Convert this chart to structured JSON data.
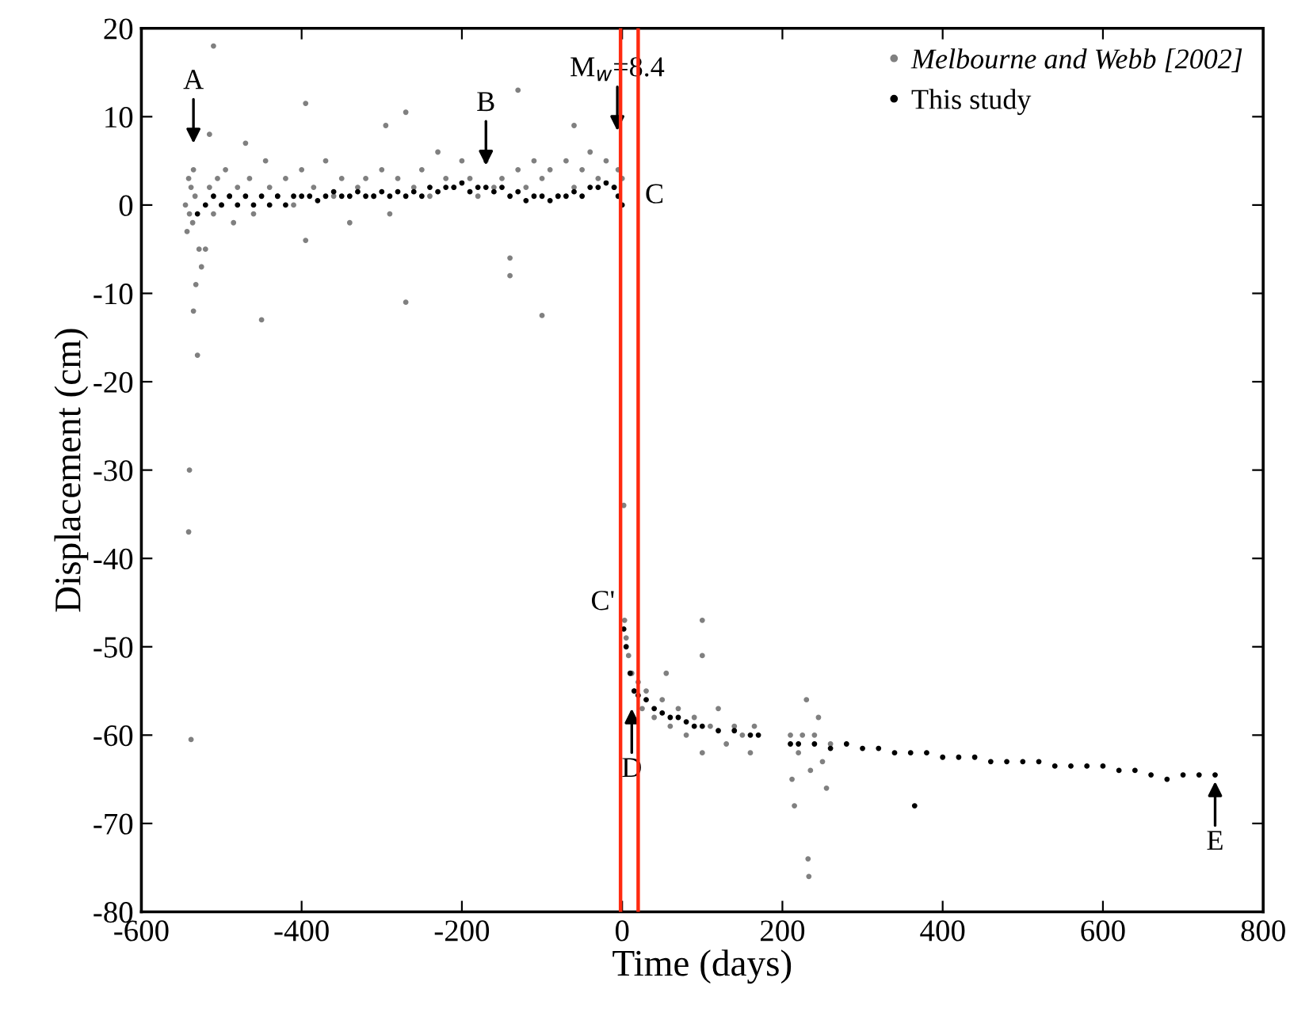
{
  "chart_data": {
    "type": "scatter",
    "xlabel": "Time (days)",
    "ylabel": "Displacement (cm)",
    "xlim": [
      -600,
      800
    ],
    "xticks": [
      -600,
      -400,
      -200,
      0,
      200,
      400,
      600,
      800
    ],
    "ylim": [
      -80,
      20
    ],
    "yticks": [
      -80,
      -70,
      -60,
      -50,
      -40,
      -30,
      -20,
      -10,
      0,
      10,
      20
    ],
    "grid": false,
    "legend": "top right",
    "marker": "circle",
    "ref_lines": [
      {
        "axis": "x",
        "value": -2,
        "color": "#ff2a10"
      },
      {
        "axis": "x",
        "value": 20,
        "color": "#ff2a10"
      }
    ],
    "annotations": [
      {
        "text": "A",
        "x": -535,
        "y": 4
      },
      {
        "text": "B",
        "x": -170,
        "y": 2
      },
      {
        "text": "M$_{w}$=8.4",
        "x": -6,
        "y": 8.4
      },
      {
        "text": "D",
        "x": 12,
        "y": -57
      },
      {
        "text": "E",
        "x": 740,
        "y": -64.5
      },
      {
        "text": "C",
        "x": 12,
        "y": 1
      },
      {
        "text": "C'",
        "x": 2,
        "y": -48
      }
    ],
    "series": [
      {
        "name": "Melbourne and Webb [2002]",
        "color": "#808080",
        "x": [
          -545,
          -543,
          -541,
          -540,
          -538,
          -536,
          -535,
          -533,
          -530,
          -541,
          -540,
          -538,
          -535,
          -532,
          -528,
          -525,
          -520,
          -510,
          -515,
          -515,
          -510,
          -505,
          -500,
          -495,
          -490,
          -485,
          -480,
          -470,
          -465,
          -460,
          -450,
          -445,
          -440,
          -430,
          -420,
          -410,
          -400,
          -395,
          -395,
          -385,
          -370,
          -360,
          -350,
          -340,
          -330,
          -320,
          -310,
          -300,
          -295,
          -290,
          -280,
          -270,
          -270,
          -260,
          -250,
          -240,
          -230,
          -220,
          -210,
          -200,
          -190,
          -180,
          -170,
          -160,
          -150,
          -140,
          -140,
          -130,
          -130,
          -120,
          -110,
          -100,
          -100,
          -90,
          -80,
          -70,
          -60,
          -60,
          -50,
          -40,
          -30,
          -20,
          -10,
          -5,
          0,
          2,
          3,
          5,
          8,
          12,
          15,
          20,
          25,
          30,
          40,
          50,
          55,
          60,
          70,
          80,
          90,
          100,
          100,
          100,
          110,
          120,
          130,
          140,
          150,
          160,
          165,
          210,
          212,
          215,
          220,
          225,
          230,
          232,
          233,
          235,
          240,
          245,
          250,
          255,
          260
        ],
        "values": [
          0,
          -3,
          3,
          -1,
          2,
          -2,
          4,
          1,
          -17,
          -37,
          -30,
          -60.5,
          -12,
          -9,
          -5,
          -7,
          -5,
          18,
          8,
          2,
          -1,
          3,
          0,
          4,
          1,
          -2,
          2,
          7,
          3,
          -1,
          -13,
          5,
          2,
          1,
          3,
          0,
          4,
          11.5,
          -4,
          2,
          5,
          1,
          3,
          -2,
          2,
          3,
          1,
          4,
          9,
          -1,
          3,
          10.5,
          -11,
          2,
          4,
          1,
          6,
          3,
          2,
          5,
          3,
          1,
          5,
          2,
          3,
          -6,
          -8,
          13,
          4,
          2,
          5,
          -12.5,
          3,
          4,
          1,
          5,
          9,
          2,
          4,
          6,
          3,
          5,
          2,
          4,
          3,
          -34,
          -47,
          -49,
          -51,
          -53,
          -55,
          -54,
          -57,
          -55,
          -58,
          -56,
          -53,
          -59,
          -57,
          -60,
          -58,
          -47,
          -51,
          -62,
          -59,
          -57,
          -61,
          -59,
          -60,
          -62,
          -59,
          -60,
          -65,
          -68,
          -62,
          -60,
          -56,
          -74,
          -76,
          -64,
          -60,
          -58,
          -63,
          -66,
          -61
        ]
      },
      {
        "name": "This study",
        "color": "#000000",
        "x": [
          -530,
          -520,
          -510,
          -500,
          -490,
          -480,
          -470,
          -460,
          -450,
          -440,
          -430,
          -420,
          -410,
          -400,
          -390,
          -380,
          -370,
          -360,
          -350,
          -340,
          -330,
          -320,
          -310,
          -300,
          -290,
          -280,
          -270,
          -260,
          -250,
          -240,
          -230,
          -220,
          -210,
          -200,
          -190,
          -180,
          -170,
          -160,
          -150,
          -140,
          -130,
          -120,
          -110,
          -100,
          -90,
          -80,
          -70,
          -60,
          -50,
          -40,
          -30,
          -20,
          -10,
          -5,
          0,
          2,
          5,
          10,
          15,
          20,
          30,
          40,
          50,
          60,
          70,
          80,
          90,
          100,
          120,
          140,
          160,
          170,
          210,
          220,
          240,
          260,
          280,
          300,
          320,
          340,
          360,
          365,
          380,
          400,
          420,
          440,
          460,
          480,
          500,
          520,
          540,
          560,
          580,
          600,
          620,
          640,
          660,
          680,
          700,
          720,
          740
        ],
        "values": [
          -1,
          0,
          1,
          0,
          1,
          0,
          1,
          0,
          1,
          0,
          1,
          0,
          1,
          1,
          1,
          0.5,
          1,
          1.5,
          1,
          1,
          1.5,
          1,
          1,
          1.5,
          1,
          1.5,
          1,
          1.5,
          1,
          2,
          1.5,
          2,
          2,
          2.5,
          1.5,
          2,
          2,
          1.5,
          2,
          1,
          1.5,
          0.5,
          1,
          1,
          0.5,
          1,
          1,
          1.5,
          1,
          2,
          2,
          2.5,
          2,
          1,
          0,
          -48,
          -50,
          -53,
          -55,
          -55.5,
          -56,
          -57,
          -57.5,
          -58,
          -58,
          -58.5,
          -59,
          -59,
          -59.5,
          -59.5,
          -60,
          -60,
          -61,
          -61,
          -61,
          -61.5,
          -61,
          -61.5,
          -61.5,
          -62,
          -62,
          -68,
          -62,
          -62.5,
          -62.5,
          -62.5,
          -63,
          -63,
          -63,
          -63,
          -63.5,
          -63.5,
          -63.5,
          -63.5,
          -64,
          -64,
          -64.5,
          -65,
          -64.5,
          -64.5,
          -64.5
        ]
      }
    ]
  }
}
